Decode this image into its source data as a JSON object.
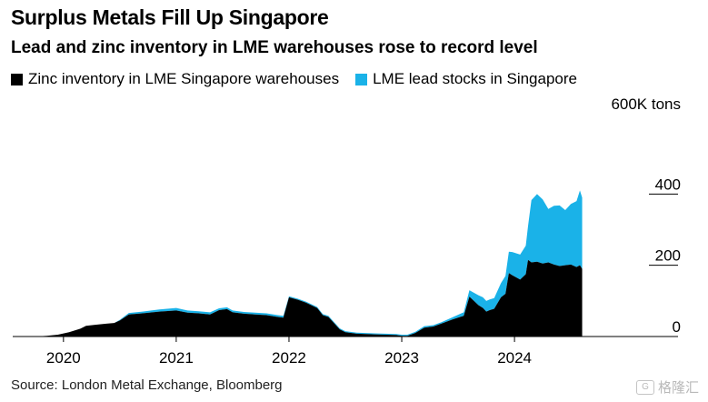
{
  "title": "Surplus Metals Fill Up Singapore",
  "subtitle": "Lead and zinc inventory in LME warehouses rose to record level",
  "source": "Source: London Metal Exchange, Bloomberg",
  "watermark": {
    "icon": "gelonghui-logo-icon",
    "text": "格隆汇"
  },
  "chart_data": {
    "type": "area",
    "stacked": true,
    "unit_label": "600K tons",
    "ylim": [
      0,
      600
    ],
    "yticks": [
      0,
      200,
      400
    ],
    "xlim": [
      2019.55,
      2025.45
    ],
    "xticks": [
      2020,
      2021,
      2022,
      2023,
      2024
    ],
    "xtick_labels": [
      "2020",
      "2021",
      "2022",
      "2023",
      "2024"
    ],
    "x": [
      2019.55,
      2019.75,
      2019.85,
      2019.95,
      2020.05,
      2020.15,
      2020.2,
      2020.28,
      2020.38,
      2020.45,
      2020.5,
      2020.58,
      2020.7,
      2020.85,
      2021.0,
      2021.1,
      2021.2,
      2021.3,
      2021.38,
      2021.45,
      2021.5,
      2021.6,
      2021.7,
      2021.8,
      2021.9,
      2021.95,
      2022.0,
      2022.08,
      2022.15,
      2022.25,
      2022.3,
      2022.35,
      2022.45,
      2022.5,
      2022.6,
      2022.75,
      2022.95,
      2023.0,
      2023.05,
      2023.12,
      2023.2,
      2023.28,
      2023.35,
      2023.45,
      2023.55,
      2023.6,
      2023.68,
      2023.72,
      2023.75,
      2023.78,
      2023.82,
      2023.88,
      2023.92,
      2023.95,
      2023.98,
      2024.05,
      2024.1,
      2024.12,
      2024.15,
      2024.2,
      2024.25,
      2024.3,
      2024.35,
      2024.4,
      2024.45,
      2024.5,
      2024.55,
      2024.58,
      2024.6
    ],
    "series": [
      {
        "name": "Zinc inventory in LME Singapore warehouses",
        "color": "#000000",
        "values": [
          0,
          0,
          2,
          5,
          12,
          22,
          30,
          33,
          36,
          38,
          45,
          62,
          65,
          70,
          73,
          67,
          65,
          62,
          74,
          77,
          68,
          64,
          62,
          60,
          55,
          53,
          110,
          103,
          95,
          80,
          60,
          55,
          20,
          12,
          8,
          6,
          4,
          2,
          2,
          10,
          25,
          28,
          36,
          48,
          58,
          112,
          88,
          80,
          70,
          74,
          78,
          110,
          120,
          178,
          172,
          160,
          175,
          215,
          208,
          210,
          205,
          208,
          202,
          198,
          200,
          202,
          195,
          200,
          190
        ]
      },
      {
        "name": "LME lead stocks in Singapore",
        "color": "#1ab2e8",
        "values": [
          0,
          0,
          0,
          0,
          0,
          0,
          0,
          0,
          0,
          0,
          2,
          4,
          5,
          6,
          7,
          6,
          6,
          6,
          5,
          5,
          5,
          5,
          5,
          5,
          5,
          5,
          3,
          3,
          3,
          3,
          3,
          3,
          3,
          3,
          3,
          3,
          3,
          3,
          3,
          3,
          4,
          4,
          4,
          6,
          10,
          18,
          28,
          30,
          30,
          30,
          30,
          40,
          50,
          60,
          65,
          70,
          80,
          95,
          175,
          190,
          180,
          150,
          165,
          170,
          155,
          170,
          185,
          210,
          200
        ]
      }
    ]
  },
  "legend": {
    "position": "top-left",
    "items": [
      {
        "label": "Zinc inventory in LME Singapore warehouses",
        "color": "#000000"
      },
      {
        "label": "LME lead stocks in Singapore",
        "color": "#1ab2e8"
      }
    ]
  }
}
